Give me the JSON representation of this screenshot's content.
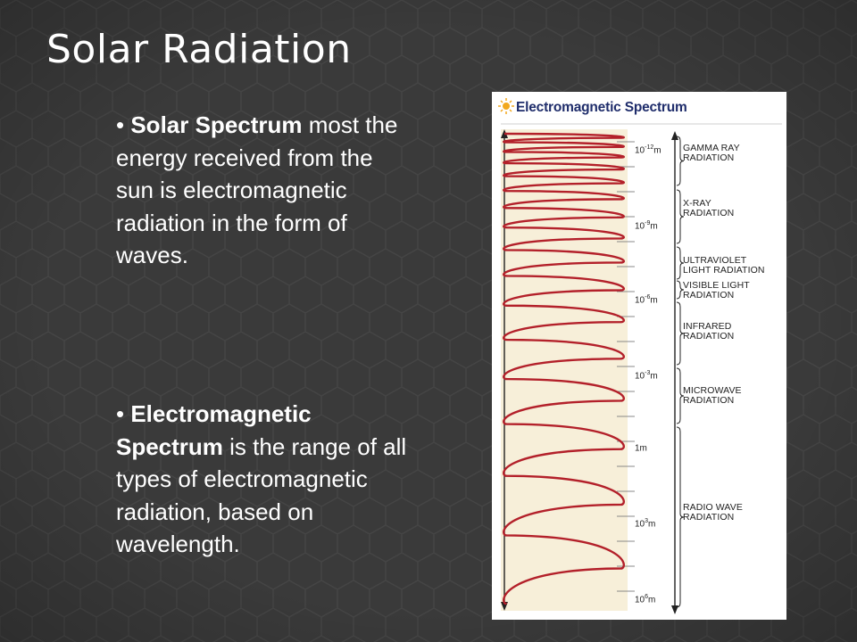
{
  "slide": {
    "title": "Solar Radiation",
    "bullets": [
      {
        "marker": "•",
        "term": "Solar Spectrum",
        "text": " most the energy received from the sun is electromagnetic radiation in the form of waves."
      },
      {
        "marker": "•",
        "term": "Electromagnetic Spectrum",
        "text": " is the range of all types of electromagnetic radiation, based on wavelength."
      }
    ]
  },
  "figure": {
    "title": "Electromagnetic Spectrum",
    "wavelengths": [
      {
        "base": "10",
        "exp": "-12",
        "unit": "m"
      },
      {
        "base": "10",
        "exp": "-9",
        "unit": "m"
      },
      {
        "base": "10",
        "exp": "-6",
        "unit": "m"
      },
      {
        "base": "10",
        "exp": "-3",
        "unit": "m"
      },
      {
        "base": "1m",
        "exp": "",
        "unit": ""
      },
      {
        "base": "10",
        "exp": "3",
        "unit": "m"
      },
      {
        "base": "10",
        "exp": "6",
        "unit": "m"
      }
    ],
    "bands": [
      {
        "line1": "GAMMA RAY",
        "line2": "RADIATION"
      },
      {
        "line1": "X-RAY",
        "line2": "RADIATION"
      },
      {
        "line1": "ULTRAVIOLET",
        "line2": "LIGHT RADIATION"
      },
      {
        "line1": "VISIBLE LIGHT",
        "line2": "RADIATION"
      },
      {
        "line1": "INFRARED",
        "line2": "RADIATION"
      },
      {
        "line1": "MICROWAVE",
        "line2": "RADIATION"
      },
      {
        "line1": "RADIO WAVE",
        "line2": "RADIATION"
      }
    ],
    "colors": {
      "wave": "#b3202a",
      "title": "#1f2d6b",
      "sun": "#f2a81d",
      "panel": "#f7efd9"
    }
  }
}
